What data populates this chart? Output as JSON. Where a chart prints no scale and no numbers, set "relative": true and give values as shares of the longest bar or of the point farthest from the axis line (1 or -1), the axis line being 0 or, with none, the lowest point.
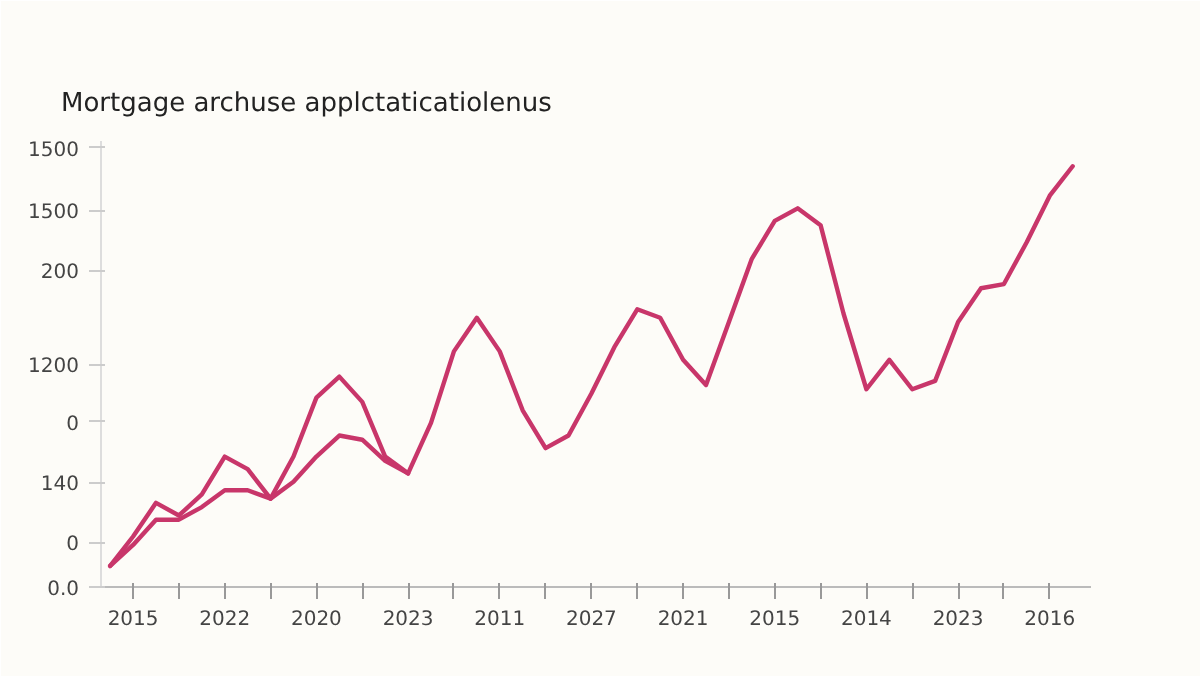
{
  "chart_data": {
    "type": "line",
    "title": "Mortgage archuse applctaticatiolenus",
    "relative": true,
    "categories": [
      null,
      "2015",
      null,
      null,
      null,
      "2022",
      null,
      null,
      null,
      "2020",
      null,
      null,
      null,
      "2023",
      null,
      null,
      null,
      "2011",
      null,
      null,
      null,
      "2027",
      null,
      null,
      null,
      "2021",
      null,
      null,
      null,
      "2015",
      null,
      null,
      null,
      "2014",
      null,
      null,
      null,
      "2023",
      null,
      null,
      null,
      "2016",
      null
    ],
    "series": [
      {
        "color": "#c8366a",
        "values": [
          0.05,
          0.12,
          0.2,
          0.17,
          0.22,
          0.31,
          0.28,
          0.21,
          0.31,
          0.45,
          0.5,
          0.44,
          0.31,
          0.27,
          0.39,
          0.56,
          0.64,
          0.56,
          0.42,
          0.33,
          0.36,
          0.46,
          0.57,
          0.66,
          0.64,
          0.54,
          0.48,
          0.63,
          0.78,
          0.87,
          0.9,
          0.86,
          0.65,
          0.47,
          0.54,
          0.47,
          0.49,
          0.63,
          0.71,
          0.72,
          0.82,
          0.93,
          1
        ]
      },
      {
        "color": "#c8366a",
        "values": [
          0.05,
          0.1,
          0.16,
          0.16,
          0.19,
          0.23,
          0.23,
          0.21,
          0.25,
          0.31,
          0.36,
          0.35,
          0.3,
          0.27,
          null,
          null,
          null,
          null,
          null,
          null,
          null,
          null,
          null,
          null,
          null,
          null,
          null,
          null,
          null,
          null,
          null,
          null,
          null,
          null,
          null,
          null,
          null,
          null,
          null,
          null,
          null,
          null,
          null
        ]
      }
    ],
    "annotations": [
      "1500",
      "1500",
      "200",
      "1200",
      "0",
      "140",
      "0",
      "0.0"
    ],
    "marker": "none",
    "line_style": "solid"
  }
}
